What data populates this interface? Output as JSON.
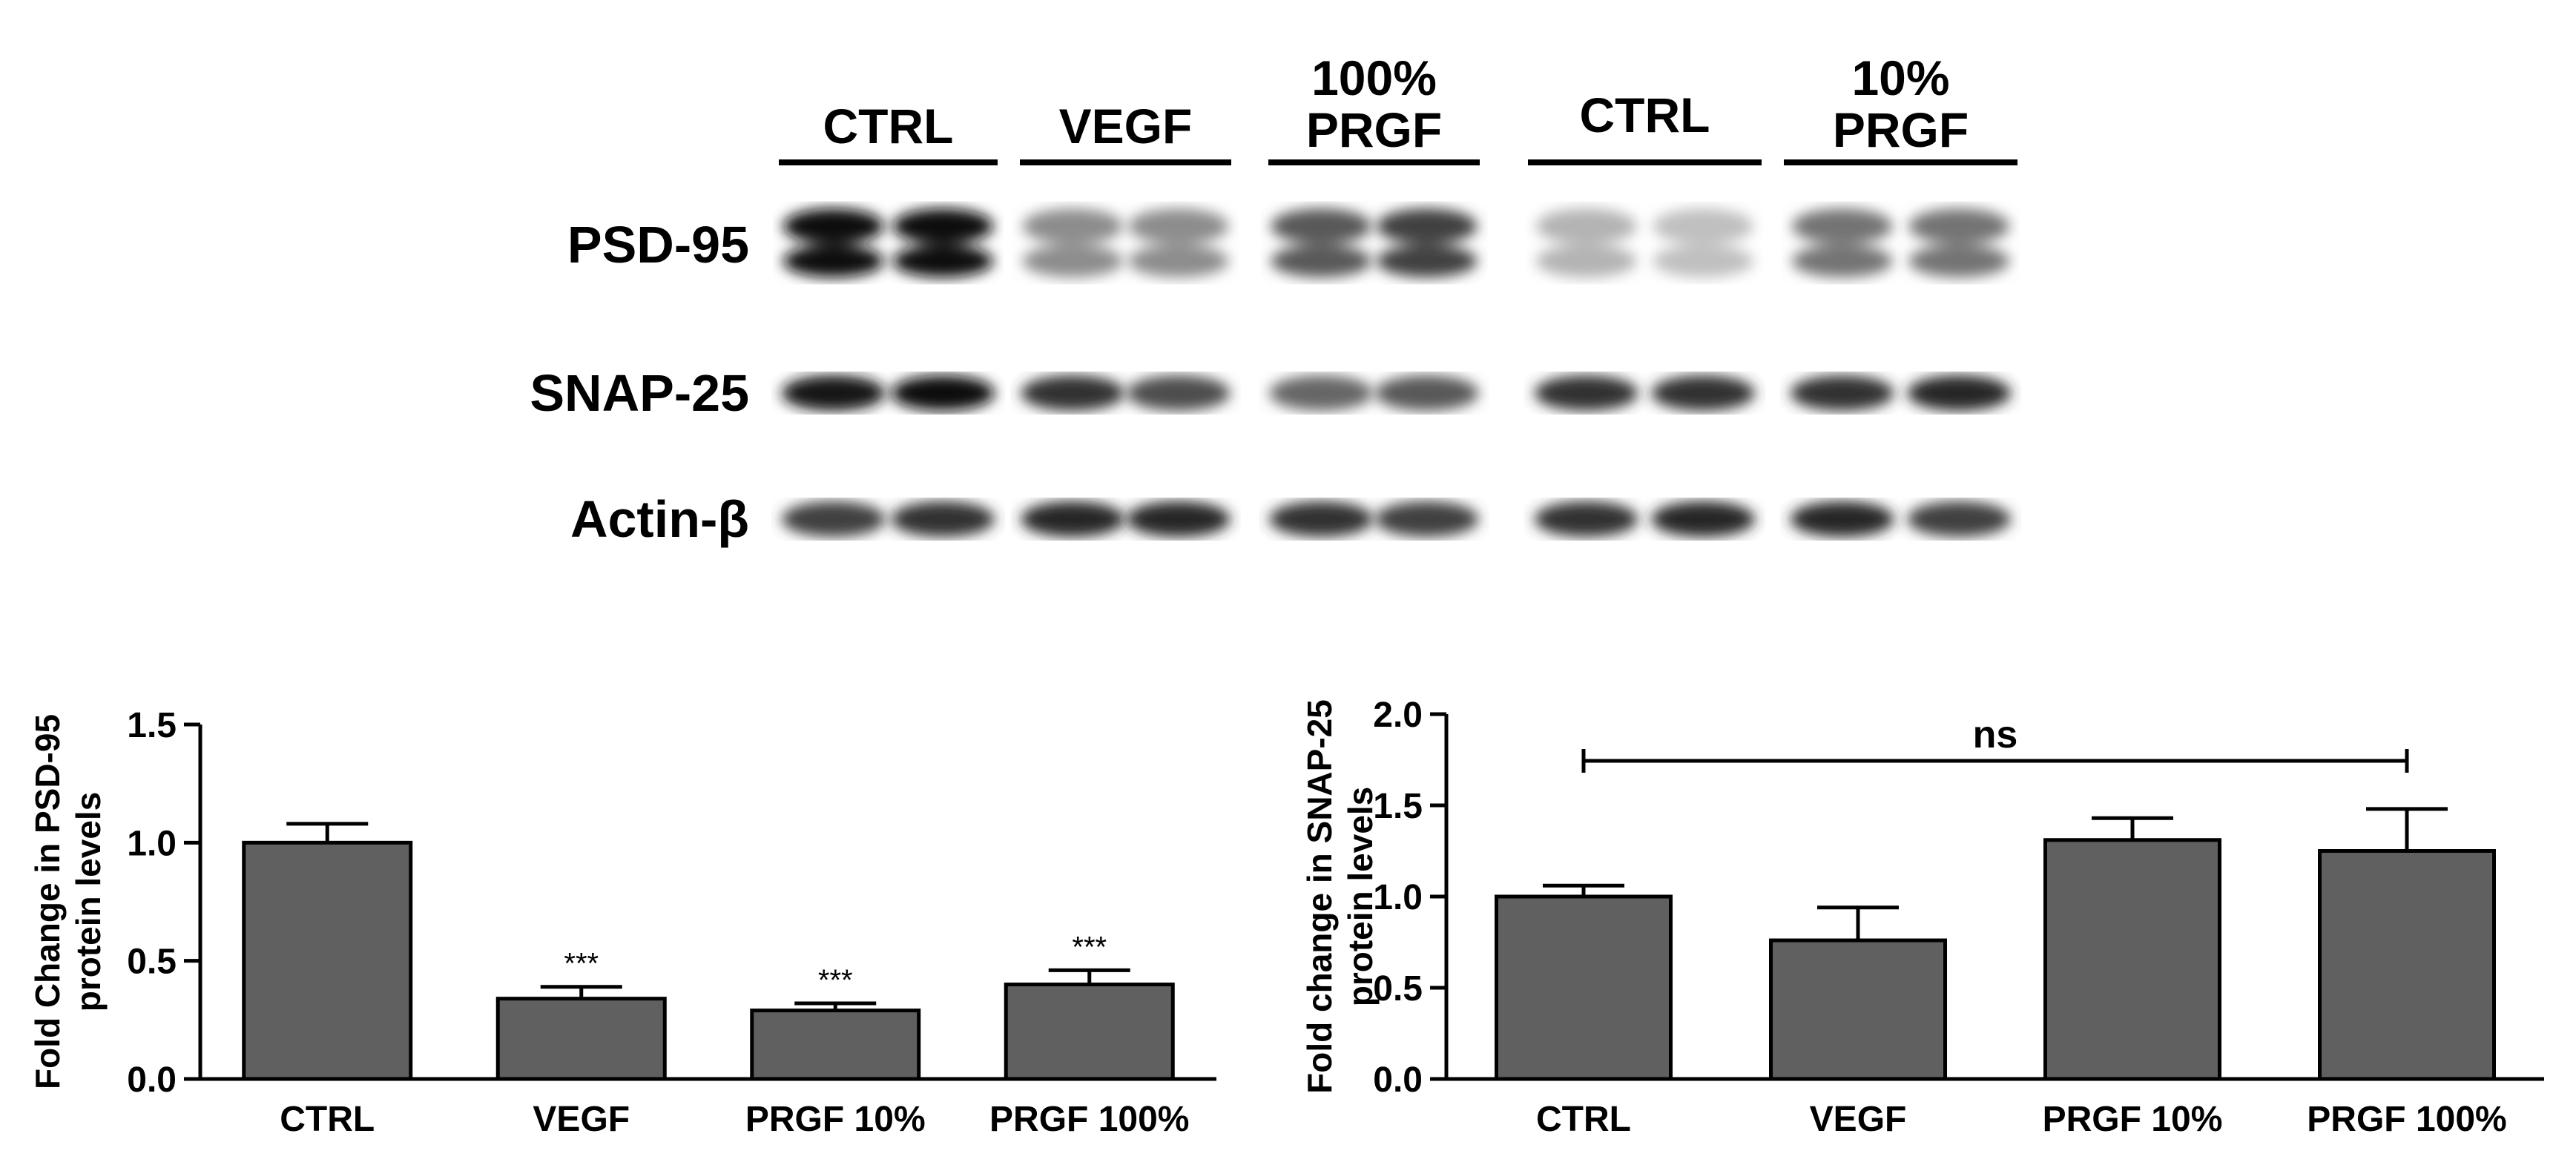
{
  "western_blot": {
    "lane_groups": [
      {
        "label_lines": [
          "CTRL"
        ],
        "lanes": 2
      },
      {
        "label_lines": [
          "VEGF"
        ],
        "lanes": 2
      },
      {
        "label_lines": [
          "100%",
          "PRGF"
        ],
        "lanes": 2
      },
      {
        "label_lines": [
          "CTRL"
        ],
        "lanes": 2
      },
      {
        "label_lines": [
          "10%",
          "PRGF"
        ],
        "lanes": 2
      }
    ],
    "rows": [
      {
        "label": "PSD-95",
        "intensity": [
          0.95,
          0.95,
          0.45,
          0.45,
          0.65,
          0.75,
          0.3,
          0.25,
          0.55,
          0.55
        ]
      },
      {
        "label": "SNAP-25",
        "intensity": [
          0.9,
          0.95,
          0.8,
          0.7,
          0.6,
          0.65,
          0.8,
          0.8,
          0.8,
          0.85
        ]
      },
      {
        "label": "Actin-β",
        "intensity": [
          0.75,
          0.8,
          0.85,
          0.85,
          0.8,
          0.75,
          0.8,
          0.85,
          0.85,
          0.75
        ]
      }
    ]
  },
  "chart_data": [
    {
      "type": "bar",
      "categories": [
        "CTRL",
        "VEGF",
        "PRGF 10%",
        "PRGF 100%"
      ],
      "values": [
        1.0,
        0.34,
        0.29,
        0.4
      ],
      "errors": [
        0.08,
        0.05,
        0.03,
        0.06
      ],
      "significance": [
        "",
        "***",
        "***",
        "***"
      ],
      "ylabel_lines": [
        "Fold Change in PSD-95",
        "protein levels"
      ],
      "xlabel": "",
      "ylim": [
        0,
        1.5
      ],
      "yticks": [
        "0.0",
        "0.5",
        "1.0",
        "1.5"
      ],
      "ytick_values": [
        0,
        0.5,
        1.0,
        1.5
      ],
      "bar_color": "#606060"
    },
    {
      "type": "bar",
      "categories": [
        "CTRL",
        "VEGF",
        "PRGF 10%",
        "PRGF 100%"
      ],
      "values": [
        1.0,
        0.76,
        1.31,
        1.25
      ],
      "errors": [
        0.06,
        0.18,
        0.12,
        0.23
      ],
      "bracket_label": "ns",
      "ylabel_lines": [
        "Fold change in SNAP-25",
        "protein levels"
      ],
      "xlabel": "",
      "ylim": [
        0,
        2.0
      ],
      "yticks": [
        "0.0",
        "0.5",
        "1.0",
        "1.5",
        "2.0"
      ],
      "ytick_values": [
        0,
        0.5,
        1.0,
        1.5,
        2.0
      ],
      "bar_color": "#606060"
    }
  ]
}
